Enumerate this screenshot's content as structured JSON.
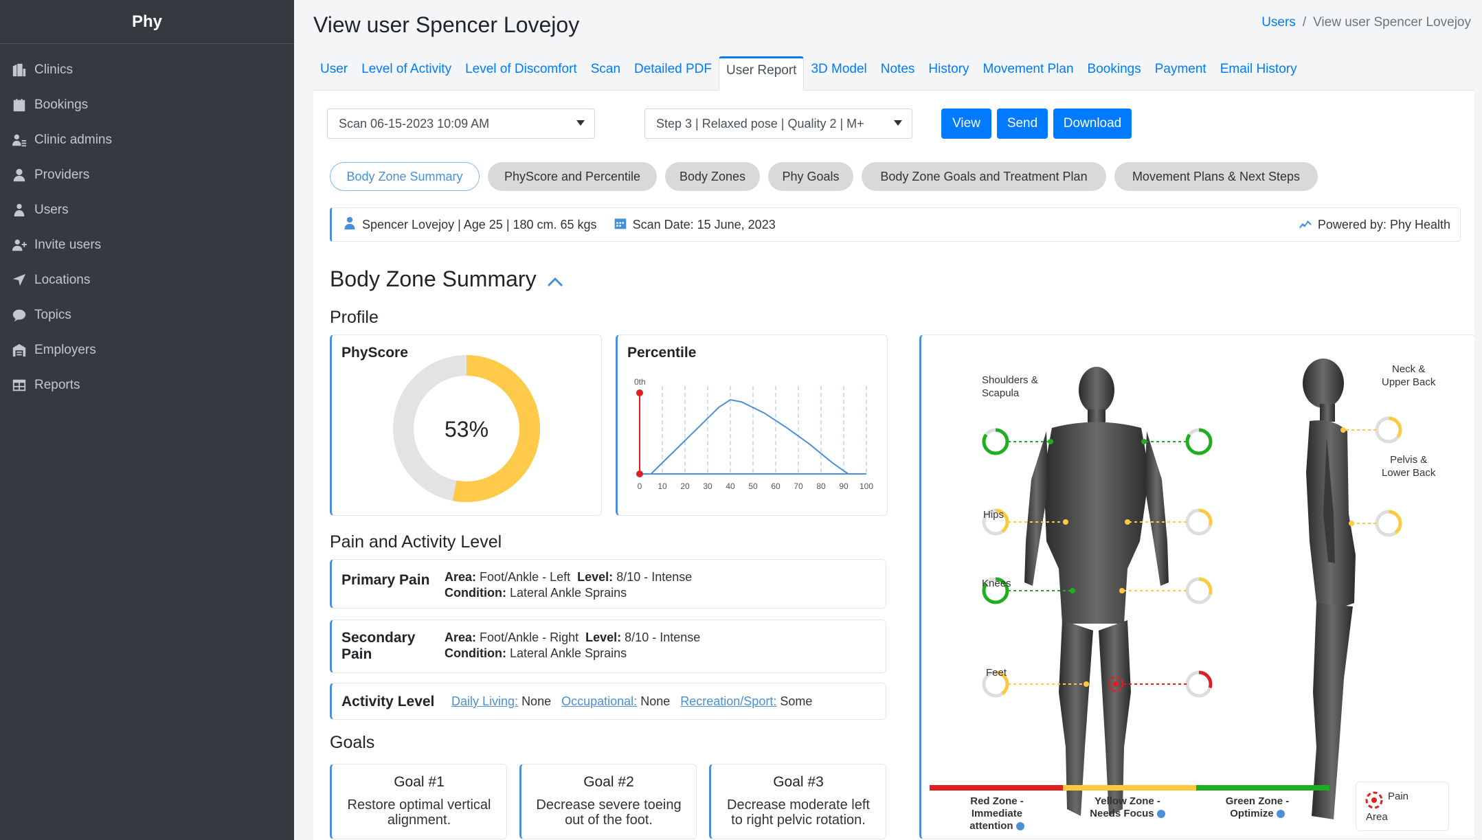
{
  "sidebar": {
    "brand": "Phy",
    "items": [
      {
        "label": "Clinics",
        "icon": "building-icon"
      },
      {
        "label": "Bookings",
        "icon": "calendar-icon"
      },
      {
        "label": "Clinic admins",
        "icon": "admin-icon"
      },
      {
        "label": "Providers",
        "icon": "user-tie-icon"
      },
      {
        "label": "Users",
        "icon": "user-icon"
      },
      {
        "label": "Invite users",
        "icon": "user-plus-icon"
      },
      {
        "label": "Locations",
        "icon": "location-arrow-icon"
      },
      {
        "label": "Topics",
        "icon": "comment-icon"
      },
      {
        "label": "Employers",
        "icon": "warehouse-icon"
      },
      {
        "label": "Reports",
        "icon": "table-icon"
      }
    ]
  },
  "header": {
    "title": "View user Spencer Lovejoy",
    "breadcrumb": {
      "root": "Users",
      "separator": "/",
      "current": "View user Spencer Lovejoy"
    }
  },
  "tabs": [
    "User",
    "Level of Activity",
    "Level of Discomfort",
    "Scan",
    "Detailed PDF",
    "User Report",
    "3D Model",
    "Notes",
    "History",
    "Movement Plan",
    "Bookings",
    "Payment",
    "Email History"
  ],
  "active_tab": "User Report",
  "controls": {
    "scan_select": "Scan 06-15-2023 10:09 AM",
    "step_select": "Step 3 | Relaxed pose | Quality 2 | M+",
    "view_label": "View",
    "send_label": "Send",
    "download_label": "Download"
  },
  "pills": [
    "Body Zone Summary",
    "PhyScore and Percentile",
    "Body Zones",
    "Phy Goals",
    "Body Zone Goals and Treatment Plan",
    "Movement Plans & Next Steps"
  ],
  "userbar": {
    "user": "Spencer Lovejoy | Age 25 | 180 cm. 65 kgs",
    "scan_date": "Scan Date: 15 June, 2023",
    "powered_by": "Powered by: Phy Health"
  },
  "section": {
    "title": "Body Zone Summary",
    "profile": "Profile",
    "pain_activity": "Pain and Activity Level",
    "goals": "Goals"
  },
  "physcore": {
    "title": "PhyScore",
    "value": 53,
    "display": "53%",
    "color": "#ffc94a",
    "track": "#e3e3e3"
  },
  "percentile": {
    "title": "Percentile",
    "marker_label": "0th",
    "marker_value": 0
  },
  "chart_data": {
    "type": "line",
    "title": "Percentile",
    "x_ticks": [
      0,
      10,
      20,
      30,
      40,
      50,
      60,
      70,
      80,
      90,
      100
    ],
    "x_tick_labels": [
      "0",
      "10",
      "20",
      "30",
      "40",
      "50",
      "60",
      "70",
      "80",
      "90",
      "100"
    ],
    "curve_x": [
      5,
      15,
      25,
      35,
      40,
      45,
      55,
      65,
      75,
      85,
      92
    ],
    "curve_y": [
      0,
      0.3,
      0.6,
      0.9,
      1.0,
      0.97,
      0.82,
      0.62,
      0.4,
      0.15,
      0
    ],
    "marker": {
      "x": 0,
      "label": "0th"
    },
    "xlim": [
      0,
      100
    ],
    "line_color": "#4a90d9",
    "marker_color": "#e02020"
  },
  "pain": {
    "primary": {
      "label": "Primary Pain",
      "area_label": "Area:",
      "area": "Foot/Ankle - Left",
      "level_label": "Level:",
      "level": "8/10 - Intense",
      "condition_label": "Condition:",
      "condition": "Lateral Ankle Sprains"
    },
    "secondary": {
      "label_line1": "Secondary",
      "label_line2": "Pain",
      "area_label": "Area:",
      "area": "Foot/Ankle - Right",
      "level_label": "Level:",
      "level": "8/10 - Intense",
      "condition_label": "Condition:",
      "condition": "Lateral Ankle Sprains"
    },
    "activity": {
      "label": "Activity Level",
      "daily_label": "Daily Living:",
      "daily": "None",
      "occupational_label": "Occupational:",
      "occupational": "None",
      "recreation_label": "Recreation/Sport:",
      "recreation": "Some"
    }
  },
  "goals": [
    {
      "title": "Goal #1",
      "line1": "Restore optimal vertical",
      "line2": "alignment."
    },
    {
      "title": "Goal #2",
      "line1": "Decrease severe toeing",
      "line2": "out of the foot."
    },
    {
      "title": "Goal #3",
      "line1": "Decrease moderate left",
      "line2": "to right pelvic rotation."
    }
  ],
  "body_zones": {
    "front_labels": {
      "shoulders_l1": "Shoulders &",
      "shoulders_l2": "Scapula",
      "hips": "Hips",
      "knees": "Knees",
      "feet": "Feet"
    },
    "side_labels": {
      "neck_l1": "Neck &",
      "neck_l2": "Upper Back",
      "pelvis_l1": "Pelvis &",
      "pelvis_l2": "Lower Back"
    },
    "ring_levels": {
      "shoulders_left": 0.85,
      "shoulders_right": 0.85,
      "hips_left": 0.4,
      "hips_right": 0.3,
      "knees_left": 0.85,
      "knees_right": 0.3,
      "feet_left": 0.4,
      "feet_right": 0.3,
      "neck": 0.35,
      "pelvis": 0.4
    },
    "colors": {
      "red": "#e02020",
      "yellow": "#fcc93f",
      "green": "#1fae1f",
      "track": "#dddddd"
    },
    "legend": {
      "red_l1": "Red Zone -",
      "red_l2": "Immediate",
      "red_l3": "attention",
      "yellow_l1": "Yellow Zone -",
      "yellow_l2": "Needs Focus",
      "green_l1": "Green Zone -",
      "green_l2": "Optimize",
      "pain_l1": "Pain",
      "pain_l2": "Area"
    }
  }
}
